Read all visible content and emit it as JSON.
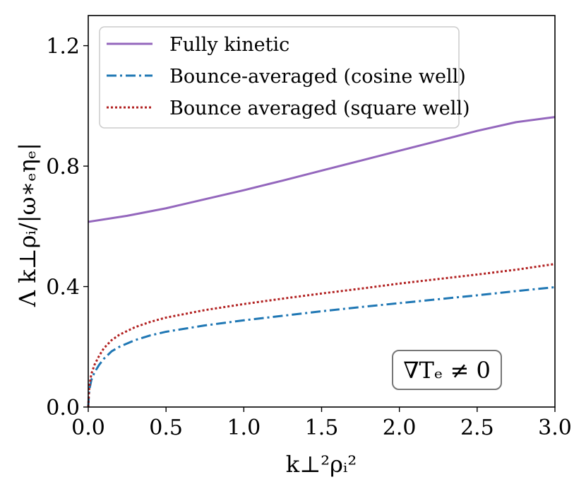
{
  "chart_data": {
    "type": "line",
    "title": "",
    "xlabel": "k⊥²ρᵢ²",
    "ylabel": "Λ k⊥ρᵢ/|ω∗ₑηₑ|",
    "xlim": [
      0.0,
      3.0
    ],
    "ylim": [
      0.0,
      1.3
    ],
    "xticks": [
      0.0,
      0.5,
      1.0,
      1.5,
      2.0,
      2.5,
      3.0
    ],
    "xtick_labels": [
      "0.0",
      "0.5",
      "1.0",
      "1.5",
      "2.0",
      "2.5",
      "3.0"
    ],
    "yticks": [
      0.0,
      0.4,
      0.8,
      1.2
    ],
    "ytick_labels": [
      "0.0",
      "0.4",
      "0.8",
      "1.2"
    ],
    "grid": false,
    "legend_position": "top-left",
    "annotation": "∇Tₑ ≠ 0",
    "series": [
      {
        "name": "Fully kinetic",
        "color": "#9467bd",
        "style": "solid",
        "x": [
          0.0,
          0.25,
          0.5,
          0.75,
          1.0,
          1.25,
          1.5,
          1.75,
          2.0,
          2.25,
          2.5,
          2.75,
          3.0
        ],
        "y": [
          0.615,
          0.635,
          0.66,
          0.69,
          0.72,
          0.752,
          0.785,
          0.818,
          0.851,
          0.884,
          0.917,
          0.946,
          0.963
        ]
      },
      {
        "name": "Bounce-averaged (cosine well)",
        "color": "#1f77b4",
        "style": "dashdot",
        "x": [
          0.0,
          0.005,
          0.01,
          0.02,
          0.04,
          0.07,
          0.1,
          0.15,
          0.2,
          0.3,
          0.4,
          0.5,
          0.75,
          1.0,
          1.25,
          1.5,
          1.75,
          2.0,
          2.25,
          2.5,
          2.75,
          3.0
        ],
        "y": [
          0.0,
          0.045,
          0.065,
          0.09,
          0.115,
          0.14,
          0.16,
          0.185,
          0.2,
          0.222,
          0.238,
          0.25,
          0.271,
          0.288,
          0.303,
          0.318,
          0.332,
          0.345,
          0.358,
          0.371,
          0.385,
          0.398
        ]
      },
      {
        "name": "Bounce averaged (square well)",
        "color": "#b22222",
        "style": "dotted",
        "x": [
          0.0,
          0.005,
          0.01,
          0.02,
          0.04,
          0.07,
          0.1,
          0.15,
          0.2,
          0.3,
          0.4,
          0.5,
          0.75,
          1.0,
          1.25,
          1.5,
          1.75,
          2.0,
          2.25,
          2.5,
          2.75,
          3.0
        ],
        "y": [
          0.0,
          0.055,
          0.08,
          0.11,
          0.14,
          0.17,
          0.195,
          0.222,
          0.24,
          0.265,
          0.283,
          0.297,
          0.322,
          0.342,
          0.36,
          0.377,
          0.393,
          0.41,
          0.425,
          0.44,
          0.456,
          0.475
        ]
      }
    ]
  }
}
